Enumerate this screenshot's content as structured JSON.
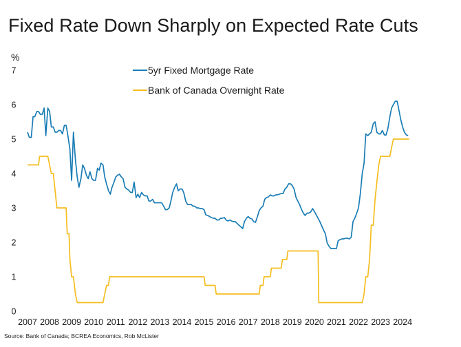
{
  "chart_data": {
    "type": "line",
    "title": "Fixed Rate Down Sharply on Expected Rate Cuts",
    "ylabel": "%",
    "xlabel": "",
    "ylim": [
      0,
      7
    ],
    "xlim": [
      2007,
      2024.4
    ],
    "y_ticks": [
      "0",
      "1",
      "2",
      "3",
      "4",
      "5",
      "6",
      "7"
    ],
    "x_ticks": [
      "2007",
      "2008",
      "2009",
      "2010",
      "2011",
      "2012",
      "2013",
      "2014",
      "2015",
      "2016",
      "2017",
      "2018",
      "2019",
      "2020",
      "2021",
      "2022",
      "2023",
      "2024"
    ],
    "grid": false,
    "legend_position": "top-center",
    "source": "Source: Bank of Canada; BCREA Economics, Rob McLister",
    "series": [
      {
        "name": "5yr Fixed Mortgage Rate",
        "color": "#1a7db5",
        "points": [
          [
            2007.0,
            5.2
          ],
          [
            2007.08,
            5.05
          ],
          [
            2007.17,
            5.05
          ],
          [
            2007.25,
            5.65
          ],
          [
            2007.33,
            5.65
          ],
          [
            2007.42,
            5.8
          ],
          [
            2007.5,
            5.8
          ],
          [
            2007.58,
            5.72
          ],
          [
            2007.67,
            5.72
          ],
          [
            2007.75,
            5.9
          ],
          [
            2007.83,
            5.1
          ],
          [
            2007.92,
            5.9
          ],
          [
            2008.0,
            5.8
          ],
          [
            2008.08,
            5.35
          ],
          [
            2008.17,
            5.35
          ],
          [
            2008.25,
            5.2
          ],
          [
            2008.33,
            5.2
          ],
          [
            2008.42,
            5.25
          ],
          [
            2008.5,
            5.25
          ],
          [
            2008.58,
            5.15
          ],
          [
            2008.67,
            5.4
          ],
          [
            2008.75,
            5.4
          ],
          [
            2008.83,
            5.1
          ],
          [
            2008.92,
            4.7
          ],
          [
            2009.0,
            3.8
          ],
          [
            2009.08,
            5.2
          ],
          [
            2009.17,
            4.4
          ],
          [
            2009.25,
            3.9
          ],
          [
            2009.33,
            3.6
          ],
          [
            2009.42,
            3.85
          ],
          [
            2009.5,
            4.25
          ],
          [
            2009.58,
            4.15
          ],
          [
            2009.67,
            3.95
          ],
          [
            2009.75,
            3.85
          ],
          [
            2009.83,
            4.05
          ],
          [
            2009.92,
            3.85
          ],
          [
            2010.0,
            3.8
          ],
          [
            2010.08,
            3.8
          ],
          [
            2010.17,
            4.15
          ],
          [
            2010.25,
            4.1
          ],
          [
            2010.33,
            4.3
          ],
          [
            2010.42,
            4.25
          ],
          [
            2010.5,
            3.9
          ],
          [
            2010.58,
            3.7
          ],
          [
            2010.67,
            3.5
          ],
          [
            2010.75,
            3.4
          ],
          [
            2010.83,
            3.6
          ],
          [
            2010.92,
            3.75
          ],
          [
            2011.0,
            3.9
          ],
          [
            2011.08,
            3.95
          ],
          [
            2011.17,
            3.98
          ],
          [
            2011.25,
            3.9
          ],
          [
            2011.33,
            3.85
          ],
          [
            2011.42,
            3.6
          ],
          [
            2011.5,
            3.55
          ],
          [
            2011.58,
            3.52
          ],
          [
            2011.67,
            3.45
          ],
          [
            2011.75,
            3.45
          ],
          [
            2011.83,
            3.75
          ],
          [
            2011.92,
            3.3
          ],
          [
            2012.0,
            3.4
          ],
          [
            2012.08,
            3.3
          ],
          [
            2012.17,
            3.45
          ],
          [
            2012.25,
            3.38
          ],
          [
            2012.33,
            3.35
          ],
          [
            2012.42,
            3.35
          ],
          [
            2012.5,
            3.2
          ],
          [
            2012.58,
            3.2
          ],
          [
            2012.67,
            3.25
          ],
          [
            2012.75,
            3.15
          ],
          [
            2012.83,
            3.15
          ],
          [
            2012.92,
            3.15
          ],
          [
            2013.0,
            3.15
          ],
          [
            2013.08,
            3.15
          ],
          [
            2013.17,
            3.05
          ],
          [
            2013.25,
            2.95
          ],
          [
            2013.33,
            2.95
          ],
          [
            2013.42,
            3.0
          ],
          [
            2013.5,
            3.2
          ],
          [
            2013.58,
            3.45
          ],
          [
            2013.67,
            3.6
          ],
          [
            2013.75,
            3.7
          ],
          [
            2013.83,
            3.5
          ],
          [
            2013.92,
            3.55
          ],
          [
            2014.0,
            3.55
          ],
          [
            2014.08,
            3.45
          ],
          [
            2014.17,
            3.2
          ],
          [
            2014.25,
            3.1
          ],
          [
            2014.33,
            3.1
          ],
          [
            2014.42,
            3.1
          ],
          [
            2014.5,
            3.05
          ],
          [
            2014.58,
            3.05
          ],
          [
            2014.67,
            3.0
          ],
          [
            2014.75,
            3.0
          ],
          [
            2014.83,
            2.98
          ],
          [
            2014.92,
            2.98
          ],
          [
            2015.0,
            2.95
          ],
          [
            2015.08,
            2.8
          ],
          [
            2015.17,
            2.78
          ],
          [
            2015.25,
            2.75
          ],
          [
            2015.33,
            2.72
          ],
          [
            2015.42,
            2.7
          ],
          [
            2015.5,
            2.7
          ],
          [
            2015.58,
            2.65
          ],
          [
            2015.67,
            2.65
          ],
          [
            2015.75,
            2.7
          ],
          [
            2015.83,
            2.7
          ],
          [
            2015.92,
            2.72
          ],
          [
            2016.0,
            2.65
          ],
          [
            2016.08,
            2.62
          ],
          [
            2016.17,
            2.65
          ],
          [
            2016.25,
            2.62
          ],
          [
            2016.33,
            2.6
          ],
          [
            2016.42,
            2.6
          ],
          [
            2016.5,
            2.55
          ],
          [
            2016.58,
            2.5
          ],
          [
            2016.67,
            2.45
          ],
          [
            2016.75,
            2.4
          ],
          [
            2016.83,
            2.6
          ],
          [
            2016.92,
            2.7
          ],
          [
            2017.0,
            2.75
          ],
          [
            2017.08,
            2.7
          ],
          [
            2017.17,
            2.68
          ],
          [
            2017.25,
            2.6
          ],
          [
            2017.33,
            2.58
          ],
          [
            2017.42,
            2.75
          ],
          [
            2017.5,
            2.92
          ],
          [
            2017.58,
            3.0
          ],
          [
            2017.67,
            3.05
          ],
          [
            2017.75,
            3.25
          ],
          [
            2017.83,
            3.3
          ],
          [
            2017.92,
            3.32
          ],
          [
            2018.0,
            3.38
          ],
          [
            2018.08,
            3.35
          ],
          [
            2018.17,
            3.35
          ],
          [
            2018.25,
            3.38
          ],
          [
            2018.33,
            3.38
          ],
          [
            2018.42,
            3.4
          ],
          [
            2018.5,
            3.42
          ],
          [
            2018.58,
            3.42
          ],
          [
            2018.67,
            3.55
          ],
          [
            2018.75,
            3.6
          ],
          [
            2018.83,
            3.7
          ],
          [
            2018.92,
            3.7
          ],
          [
            2019.0,
            3.65
          ],
          [
            2019.08,
            3.55
          ],
          [
            2019.17,
            3.3
          ],
          [
            2019.25,
            3.2
          ],
          [
            2019.33,
            3.1
          ],
          [
            2019.42,
            2.95
          ],
          [
            2019.5,
            2.85
          ],
          [
            2019.58,
            2.78
          ],
          [
            2019.67,
            2.85
          ],
          [
            2019.75,
            2.85
          ],
          [
            2019.83,
            2.88
          ],
          [
            2019.92,
            2.98
          ],
          [
            2020.0,
            2.9
          ],
          [
            2020.08,
            2.8
          ],
          [
            2020.17,
            2.7
          ],
          [
            2020.25,
            2.6
          ],
          [
            2020.33,
            2.48
          ],
          [
            2020.42,
            2.35
          ],
          [
            2020.5,
            2.25
          ],
          [
            2020.58,
            1.98
          ],
          [
            2020.67,
            1.88
          ],
          [
            2020.75,
            1.82
          ],
          [
            2020.83,
            1.82
          ],
          [
            2020.92,
            1.82
          ],
          [
            2021.0,
            1.82
          ],
          [
            2021.08,
            2.05
          ],
          [
            2021.17,
            2.08
          ],
          [
            2021.25,
            2.1
          ],
          [
            2021.33,
            2.1
          ],
          [
            2021.42,
            2.12
          ],
          [
            2021.5,
            2.12
          ],
          [
            2021.58,
            2.1
          ],
          [
            2021.67,
            2.15
          ],
          [
            2021.75,
            2.6
          ],
          [
            2021.83,
            2.7
          ],
          [
            2021.92,
            2.85
          ],
          [
            2022.0,
            3.0
          ],
          [
            2022.08,
            3.4
          ],
          [
            2022.17,
            4.0
          ],
          [
            2022.25,
            4.3
          ],
          [
            2022.33,
            5.15
          ],
          [
            2022.42,
            5.1
          ],
          [
            2022.5,
            5.15
          ],
          [
            2022.58,
            5.2
          ],
          [
            2022.67,
            5.45
          ],
          [
            2022.75,
            5.5
          ],
          [
            2022.83,
            5.2
          ],
          [
            2022.92,
            5.15
          ],
          [
            2023.0,
            5.15
          ],
          [
            2023.08,
            5.25
          ],
          [
            2023.17,
            5.12
          ],
          [
            2023.25,
            5.12
          ],
          [
            2023.33,
            5.3
          ],
          [
            2023.42,
            5.65
          ],
          [
            2023.5,
            5.9
          ],
          [
            2023.58,
            6.0
          ],
          [
            2023.67,
            6.1
          ],
          [
            2023.75,
            6.1
          ],
          [
            2023.83,
            5.85
          ],
          [
            2023.92,
            5.55
          ],
          [
            2024.0,
            5.35
          ],
          [
            2024.08,
            5.2
          ],
          [
            2024.17,
            5.12
          ],
          [
            2024.25,
            5.1
          ]
        ]
      },
      {
        "name": "Bank of Canada Overnight Rate",
        "color": "#f5bd1f",
        "points": [
          [
            2007.0,
            4.25
          ],
          [
            2007.5,
            4.25
          ],
          [
            2007.55,
            4.5
          ],
          [
            2007.92,
            4.5
          ],
          [
            2008.0,
            4.25
          ],
          [
            2008.08,
            4.0
          ],
          [
            2008.17,
            4.0
          ],
          [
            2008.25,
            3.5
          ],
          [
            2008.33,
            3.0
          ],
          [
            2008.75,
            3.0
          ],
          [
            2008.8,
            2.25
          ],
          [
            2008.88,
            2.25
          ],
          [
            2008.92,
            1.5
          ],
          [
            2009.0,
            1.0
          ],
          [
            2009.08,
            1.0
          ],
          [
            2009.17,
            0.5
          ],
          [
            2009.25,
            0.25
          ],
          [
            2010.42,
            0.25
          ],
          [
            2010.5,
            0.5
          ],
          [
            2010.58,
            0.75
          ],
          [
            2010.67,
            0.75
          ],
          [
            2010.72,
            1.0
          ],
          [
            2015.0,
            1.0
          ],
          [
            2015.05,
            0.75
          ],
          [
            2015.5,
            0.75
          ],
          [
            2015.55,
            0.5
          ],
          [
            2017.5,
            0.5
          ],
          [
            2017.55,
            0.75
          ],
          [
            2017.67,
            0.75
          ],
          [
            2017.72,
            1.0
          ],
          [
            2018.0,
            1.0
          ],
          [
            2018.05,
            1.25
          ],
          [
            2018.5,
            1.25
          ],
          [
            2018.55,
            1.5
          ],
          [
            2018.75,
            1.5
          ],
          [
            2018.8,
            1.75
          ],
          [
            2020.17,
            1.75
          ],
          [
            2020.2,
            0.25
          ],
          [
            2022.17,
            0.25
          ],
          [
            2022.25,
            0.5
          ],
          [
            2022.33,
            1.0
          ],
          [
            2022.42,
            1.0
          ],
          [
            2022.5,
            1.5
          ],
          [
            2022.58,
            2.5
          ],
          [
            2022.67,
            2.5
          ],
          [
            2022.75,
            3.25
          ],
          [
            2022.83,
            3.75
          ],
          [
            2022.92,
            4.25
          ],
          [
            2023.0,
            4.5
          ],
          [
            2023.42,
            4.5
          ],
          [
            2023.5,
            4.75
          ],
          [
            2023.58,
            5.0
          ],
          [
            2024.3,
            5.0
          ]
        ]
      }
    ]
  }
}
